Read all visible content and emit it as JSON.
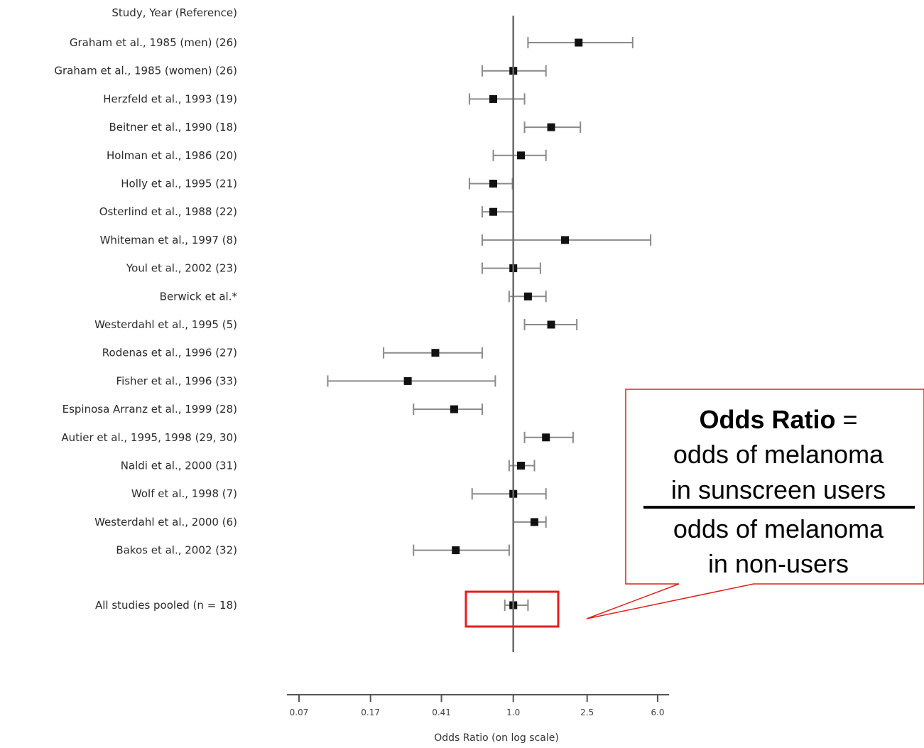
{
  "chart_data": {
    "type": "forest",
    "header": "Study, Year (Reference)",
    "xlabel": "Odds Ratio (on log scale)",
    "log_scale": true,
    "xlim": [
      0.07,
      6.0
    ],
    "ticks": [
      {
        "value": 0.07,
        "label": "0.07"
      },
      {
        "value": 0.17,
        "label": "0.17"
      },
      {
        "value": 0.41,
        "label": "0.41"
      },
      {
        "value": 1.0,
        "label": "1.0"
      },
      {
        "value": 2.5,
        "label": "2.5"
      },
      {
        "value": 6.0,
        "label": "6.0"
      }
    ],
    "reference_line": 1.0,
    "studies": [
      {
        "label": "Graham et al., 1985 (men) (26)",
        "or": 2.25,
        "lo": 1.2,
        "hi": 4.4
      },
      {
        "label": "Graham et al., 1985 (women) (26)",
        "or": 1.0,
        "lo": 0.68,
        "hi": 1.5
      },
      {
        "label": "Herzfeld et al., 1993 (19)",
        "or": 0.78,
        "lo": 0.58,
        "hi": 1.15
      },
      {
        "label": "Beitner et al., 1990 (18)",
        "or": 1.6,
        "lo": 1.15,
        "hi": 2.3
      },
      {
        "label": "Holman et al., 1986 (20)",
        "or": 1.1,
        "lo": 0.78,
        "hi": 1.5
      },
      {
        "label": "Holly et al., 1995 (21)",
        "or": 0.78,
        "lo": 0.58,
        "hi": 0.99
      },
      {
        "label": "Osterlind et al., 1988 (22)",
        "or": 0.78,
        "lo": 0.68,
        "hi": 1.0
      },
      {
        "label": "Whiteman et al., 1997 (8)",
        "or": 1.9,
        "lo": 0.68,
        "hi": 5.5
      },
      {
        "label": "Youl et al., 2002 (23)",
        "or": 1.0,
        "lo": 0.68,
        "hi": 1.4
      },
      {
        "label": "Berwick et al.*",
        "or": 1.2,
        "lo": 0.95,
        "hi": 1.5
      },
      {
        "label": "Westerdahl et al., 1995 (5)",
        "or": 1.6,
        "lo": 1.15,
        "hi": 2.2
      },
      {
        "label": "Rodenas et al., 1996 (27)",
        "or": 0.38,
        "lo": 0.2,
        "hi": 0.68
      },
      {
        "label": "Fisher et al., 1996 (33)",
        "or": 0.27,
        "lo": 0.1,
        "hi": 0.8
      },
      {
        "label": "Espinosa Arranz et al., 1999 (28)",
        "or": 0.48,
        "lo": 0.29,
        "hi": 0.68
      },
      {
        "label": "Autier et al., 1995, 1998 (29, 30)",
        "or": 1.5,
        "lo": 1.15,
        "hi": 2.1
      },
      {
        "label": "Naldi et al., 2000 (31)",
        "or": 1.1,
        "lo": 0.95,
        "hi": 1.3
      },
      {
        "label": "Wolf et al., 1998 (7)",
        "or": 1.0,
        "lo": 0.6,
        "hi": 1.5
      },
      {
        "label": "Westerdahl et al., 2000 (6)",
        "or": 1.3,
        "lo": 1.0,
        "hi": 1.5
      },
      {
        "label": "Bakos et al., 2002 (32)",
        "or": 0.49,
        "lo": 0.29,
        "hi": 0.95
      }
    ],
    "pooled": {
      "label": "All studies pooled (n = 18)",
      "or": 1.0,
      "lo": 0.9,
      "hi": 1.2
    },
    "callout": {
      "title": "Odds Ratio",
      "equals": "=",
      "numerator": [
        "odds of melanoma",
        "in sunscreen users"
      ],
      "denominator": [
        "odds of melanoma",
        "in non-users"
      ],
      "border_color": "#e0201b",
      "highlight_color": "#e0201b"
    }
  }
}
